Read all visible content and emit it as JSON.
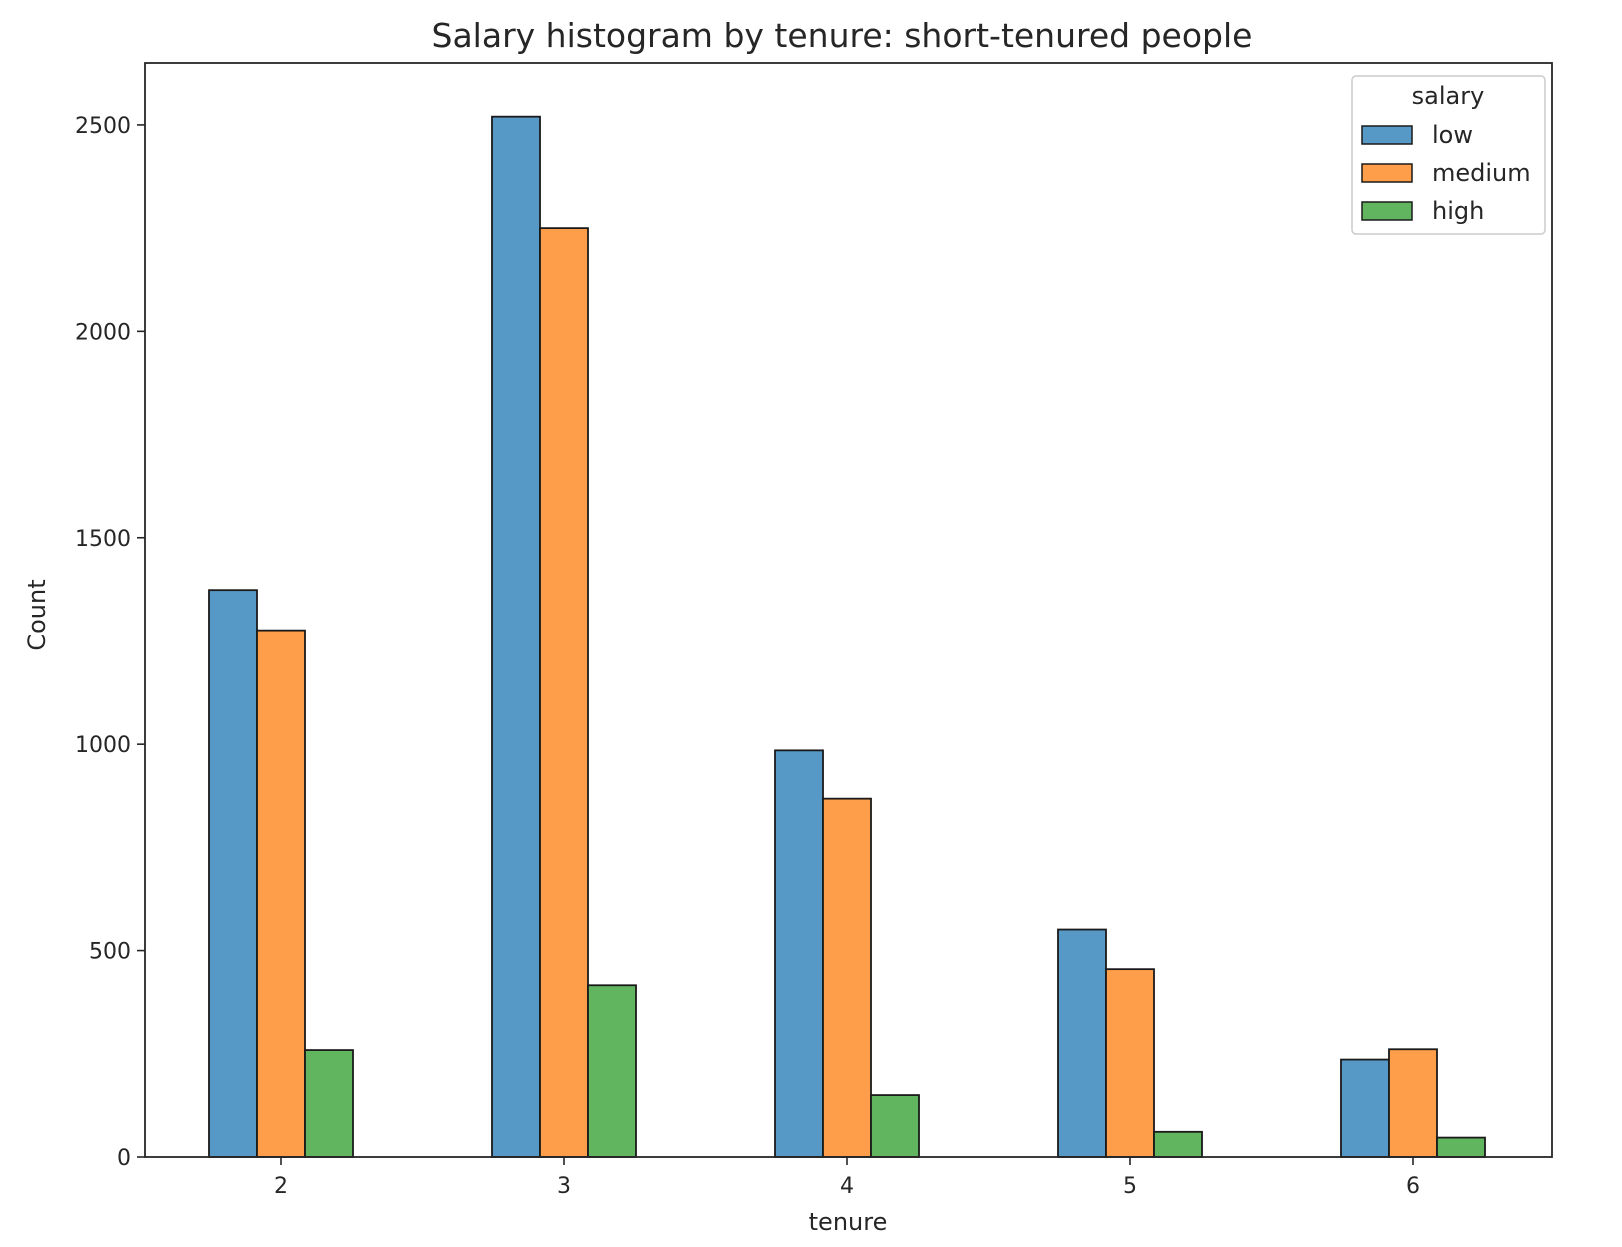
{
  "chart_data": {
    "type": "bar",
    "title": "Salary histogram by tenure: short-tenured people",
    "xlabel": "tenure",
    "ylabel": "Count",
    "categories": [
      "2",
      "3",
      "4",
      "5",
      "6"
    ],
    "ylim": [
      0,
      2650
    ],
    "yticks": [
      "0",
      "500",
      "1000",
      "1500",
      "2000",
      "2500"
    ],
    "legend": {
      "title": "salary",
      "position": "top-right"
    },
    "grid": false,
    "series": [
      {
        "name": "low",
        "color": "#5699C6",
        "values": [
          1373,
          2520,
          985,
          551,
          236
        ]
      },
      {
        "name": "medium",
        "color": "#FF9E4A",
        "values": [
          1275,
          2250,
          868,
          455,
          261
        ]
      },
      {
        "name": "high",
        "color": "#60B55E",
        "values": [
          259,
          416,
          150,
          61,
          47
        ]
      }
    ]
  }
}
